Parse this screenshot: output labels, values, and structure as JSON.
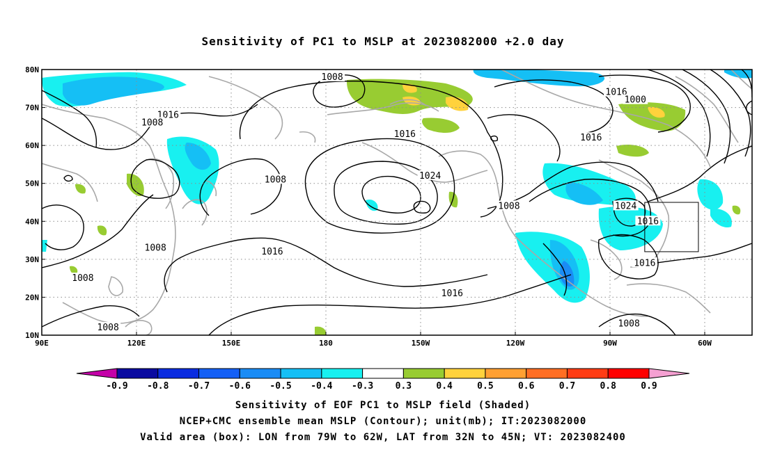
{
  "title": "Sensitivity of PC1 to MSLP at 2023082000 +2.0 day",
  "map": {
    "lon_labels": [
      "90E",
      "120E",
      "150E",
      "180",
      "150W",
      "120W",
      "90W",
      "60W"
    ],
    "lon_values": [
      90,
      120,
      150,
      180,
      210,
      240,
      270,
      300
    ],
    "lon_range": [
      90,
      315
    ],
    "lat_labels": [
      "10N",
      "20N",
      "30N",
      "40N",
      "50N",
      "60N",
      "70N",
      "80N"
    ],
    "lat_values": [
      10,
      20,
      30,
      40,
      50,
      60,
      70,
      80
    ],
    "lat_range": [
      10,
      80
    ],
    "grid": "dotted",
    "contour_labels": [
      {
        "text": "1008",
        "lon": 182,
        "lat": 78
      },
      {
        "text": "1016",
        "lon": 130,
        "lat": 68
      },
      {
        "text": "1008",
        "lon": 125,
        "lat": 66
      },
      {
        "text": "1016",
        "lon": 205,
        "lat": 63
      },
      {
        "text": "1016",
        "lon": 272,
        "lat": 74
      },
      {
        "text": "1000",
        "lon": 278,
        "lat": 72
      },
      {
        "text": "1016",
        "lon": 264,
        "lat": 62
      },
      {
        "text": "1008",
        "lon": 164,
        "lat": 51
      },
      {
        "text": "1024",
        "lon": 213,
        "lat": 52
      },
      {
        "text": "1008",
        "lon": 238,
        "lat": 44
      },
      {
        "text": "1024",
        "lon": 275,
        "lat": 44
      },
      {
        "text": "1016",
        "lon": 282,
        "lat": 40
      },
      {
        "text": "1008",
        "lon": 126,
        "lat": 33
      },
      {
        "text": "1016",
        "lon": 163,
        "lat": 32
      },
      {
        "text": "1008",
        "lon": 103,
        "lat": 25
      },
      {
        "text": "1016",
        "lon": 220,
        "lat": 21
      },
      {
        "text": "1016",
        "lon": 281,
        "lat": 29
      },
      {
        "text": "1008",
        "lon": 111,
        "lat": 12
      },
      {
        "text": "1008",
        "lon": 276,
        "lat": 13
      }
    ],
    "valid_box": {
      "lon_min": 281,
      "lon_max": 298,
      "lat_min": 32,
      "lat_max": 45
    }
  },
  "colorbar": {
    "ticks": [
      "-0.9",
      "-0.8",
      "-0.7",
      "-0.6",
      "-0.5",
      "-0.4",
      "-0.3",
      "0.3",
      "0.4",
      "0.5",
      "0.6",
      "0.7",
      "0.8",
      "0.9"
    ],
    "colors": [
      "#c400a8",
      "#0a0aa0",
      "#0a2ce0",
      "#1560f5",
      "#1a8cf5",
      "#15bff5",
      "#18f0f0",
      "#ffffff",
      "#98cc32",
      "#ffd23c",
      "#ffa032",
      "#ff6e23",
      "#ff3c14",
      "#ff0000",
      "#f5a0d2"
    ]
  },
  "captions": {
    "line1": "Sensitivity of EOF PC1 to MSLP field (Shaded)",
    "line2": "NCEP+CMC ensemble mean MSLP (Contour); unit(mb); IT:2023082000",
    "line3": "Valid area (box): LON from 79W to 62W, LAT from 32N to 45N; VT: 2023082400"
  }
}
